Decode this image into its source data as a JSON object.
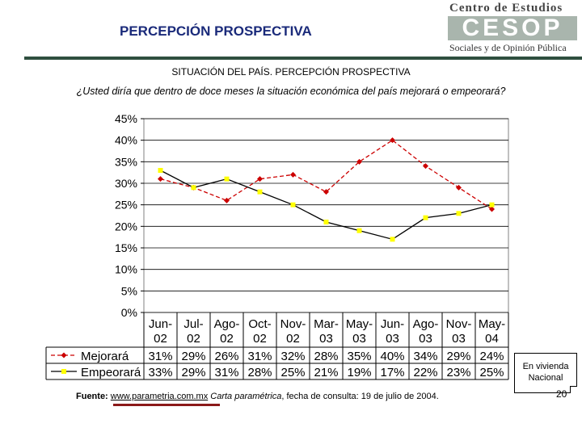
{
  "header": {
    "title": "PERCEPCIÓN PROSPECTIVA"
  },
  "logo": {
    "top_text": "Centro de Estudios",
    "mark_text": "CESOP",
    "bottom_text": "Sociales y de Opinión Pública"
  },
  "chart_title": "SITUACIÓN DEL PAÍS. PERCEPCIÓN PROSPECTIVA",
  "question": "¿Usted diría que dentro de doce meses la situación económica del país mejorará o empeorará?",
  "chart_data": {
    "type": "line",
    "title": "SITUACIÓN DEL PAÍS. PERCEPCIÓN PROSPECTIVA",
    "categories": [
      "Jun-02",
      "Jul-02",
      "Ago-02",
      "Oct-02",
      "Nov-02",
      "Mar-03",
      "May-03",
      "Jun-03",
      "Ago-03",
      "Nov-03",
      "May-04"
    ],
    "series": [
      {
        "name": "Mejorará",
        "values": [
          31,
          29,
          26,
          31,
          32,
          28,
          35,
          40,
          34,
          29,
          24
        ],
        "labels": [
          "31%",
          "29%",
          "26%",
          "31%",
          "32%",
          "28%",
          "35%",
          "40%",
          "34%",
          "29%",
          "24%"
        ],
        "color": "#cc0000",
        "marker_color": "#cc0000",
        "dashed": true
      },
      {
        "name": "Empeorará",
        "values": [
          33,
          29,
          31,
          28,
          25,
          21,
          19,
          17,
          22,
          23,
          25
        ],
        "labels": [
          "33%",
          "29%",
          "31%",
          "28%",
          "25%",
          "21%",
          "19%",
          "17%",
          "22%",
          "23%",
          "25%"
        ],
        "color": "#000000",
        "marker_color": "#ffff00",
        "dashed": false
      }
    ],
    "y_ticks": [
      "0%",
      "5%",
      "10%",
      "15%",
      "20%",
      "25%",
      "30%",
      "35%",
      "40%",
      "45%"
    ],
    "ylim": [
      0,
      45
    ],
    "ylabel": "",
    "xlabel": "",
    "grid": true,
    "legend": "data-table-bottom"
  },
  "callout": {
    "text": "En vivienda Nacional"
  },
  "source": {
    "label": "Fuente:",
    "link": "www.parametria.com.mx",
    "publication": "Carta paramétrica",
    "rest": ", fecha de consulta: 19 de julio de 2004."
  },
  "page_number": "20"
}
